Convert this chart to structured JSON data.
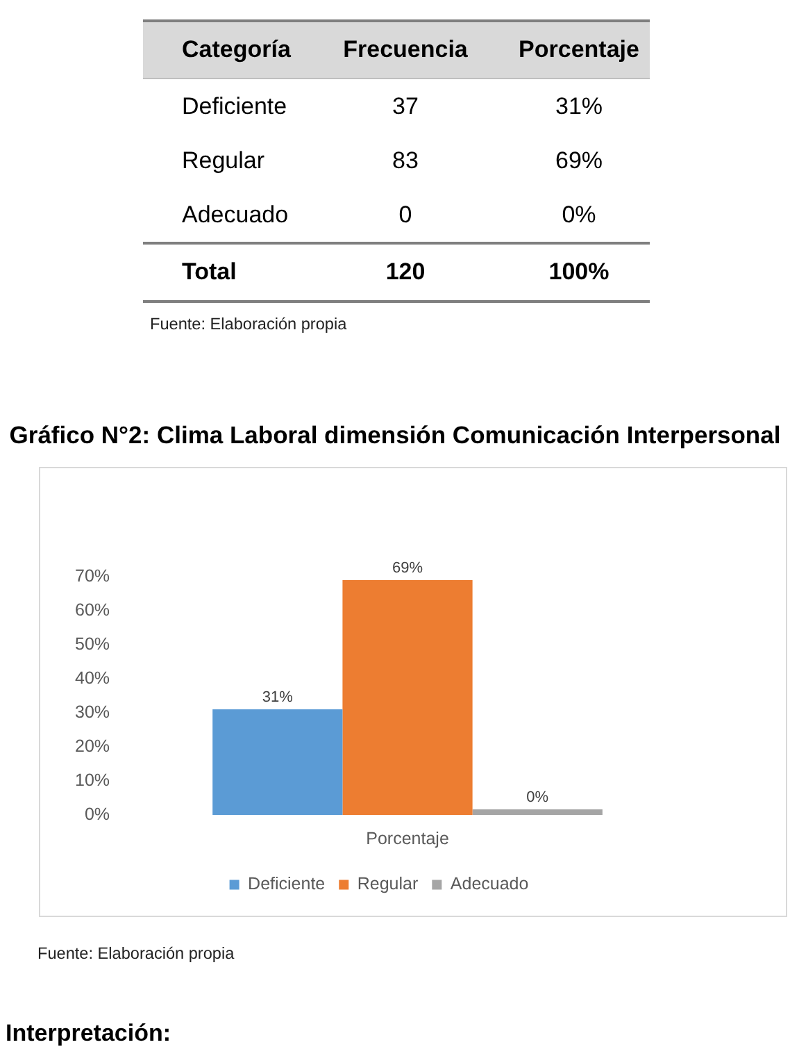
{
  "chart_data": [
    {
      "type": "other",
      "xlabel": "Categoría",
      "categories": [
        "Deficiente",
        "Regular",
        "Adecuado",
        "Total"
      ],
      "series": [
        {
          "name": "Frecuencia",
          "values": [
            37,
            83,
            0,
            120
          ]
        },
        {
          "name": "Porcentaje",
          "values": [
            31,
            69,
            0,
            100
          ],
          "value_labels": [
            "31%",
            "69%",
            "0%",
            "100%"
          ]
        }
      ],
      "data_labels": true,
      "annotations": [
        "Fuente: Elaboración propia"
      ]
    },
    {
      "type": "bar",
      "title": "Gráfico N°2: Clima Laboral dimensión Comunicación Interpersonal",
      "xlabel": "Porcentaje",
      "categories": [
        null
      ],
      "series": [
        {
          "name": "Deficiente",
          "color": "#5b9bd5",
          "values": [
            31
          ],
          "value_labels": [
            "31%"
          ]
        },
        {
          "name": "Regular",
          "color": "#ed7d31",
          "values": [
            69
          ],
          "value_labels": [
            "69%"
          ]
        },
        {
          "name": "Adecuado",
          "color": "#a5a5a5",
          "values": [
            0
          ],
          "value_labels": [
            "0%"
          ]
        }
      ],
      "ylim": [
        0,
        70
      ],
      "yticks": [
        {
          "value": 0,
          "label": "0%"
        },
        {
          "value": 10,
          "label": "10%"
        },
        {
          "value": 20,
          "label": "20%"
        },
        {
          "value": 30,
          "label": "30%"
        },
        {
          "value": 40,
          "label": "40%"
        },
        {
          "value": 50,
          "label": "50%"
        },
        {
          "value": 60,
          "label": "60%"
        },
        {
          "value": 70,
          "label": "70%"
        }
      ],
      "grid": false,
      "legend": "bottom",
      "annotations": [
        "Fuente: Elaboración propia",
        "Interpretación:"
      ]
    }
  ]
}
